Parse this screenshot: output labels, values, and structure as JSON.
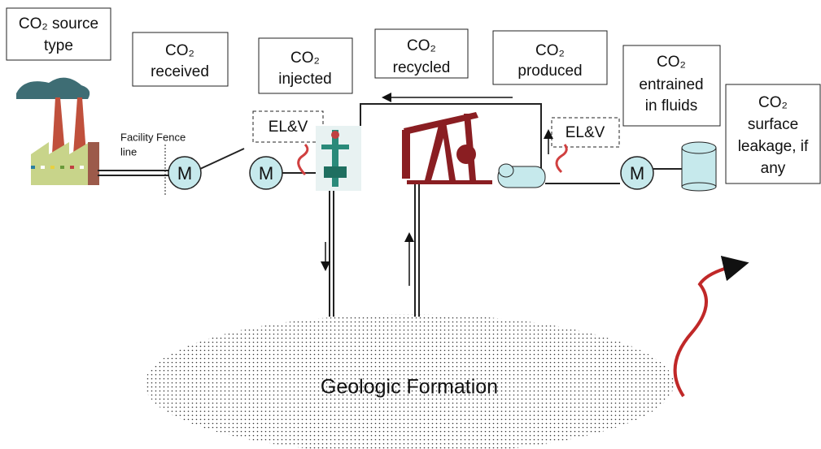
{
  "labels": [
    {
      "lines": [
        "CO₂ source",
        "type"
      ]
    },
    {
      "lines": [
        "CO₂",
        "received"
      ]
    },
    {
      "lines": [
        "CO₂",
        "injected"
      ]
    },
    {
      "lines": [
        "CO₂",
        "recycled"
      ]
    },
    {
      "lines": [
        "CO₂",
        "produced"
      ]
    },
    {
      "lines": [
        "CO₂",
        "entrained",
        "in fluids"
      ]
    },
    {
      "lines": [
        "CO₂",
        "surface",
        "leakage, if",
        "any"
      ]
    }
  ],
  "elv": [
    "EL&V",
    "EL&V"
  ],
  "fence": [
    "Facility Fence",
    "line"
  ],
  "meters": [
    "M",
    "M",
    "M"
  ],
  "formation": "Geologic Formation"
}
